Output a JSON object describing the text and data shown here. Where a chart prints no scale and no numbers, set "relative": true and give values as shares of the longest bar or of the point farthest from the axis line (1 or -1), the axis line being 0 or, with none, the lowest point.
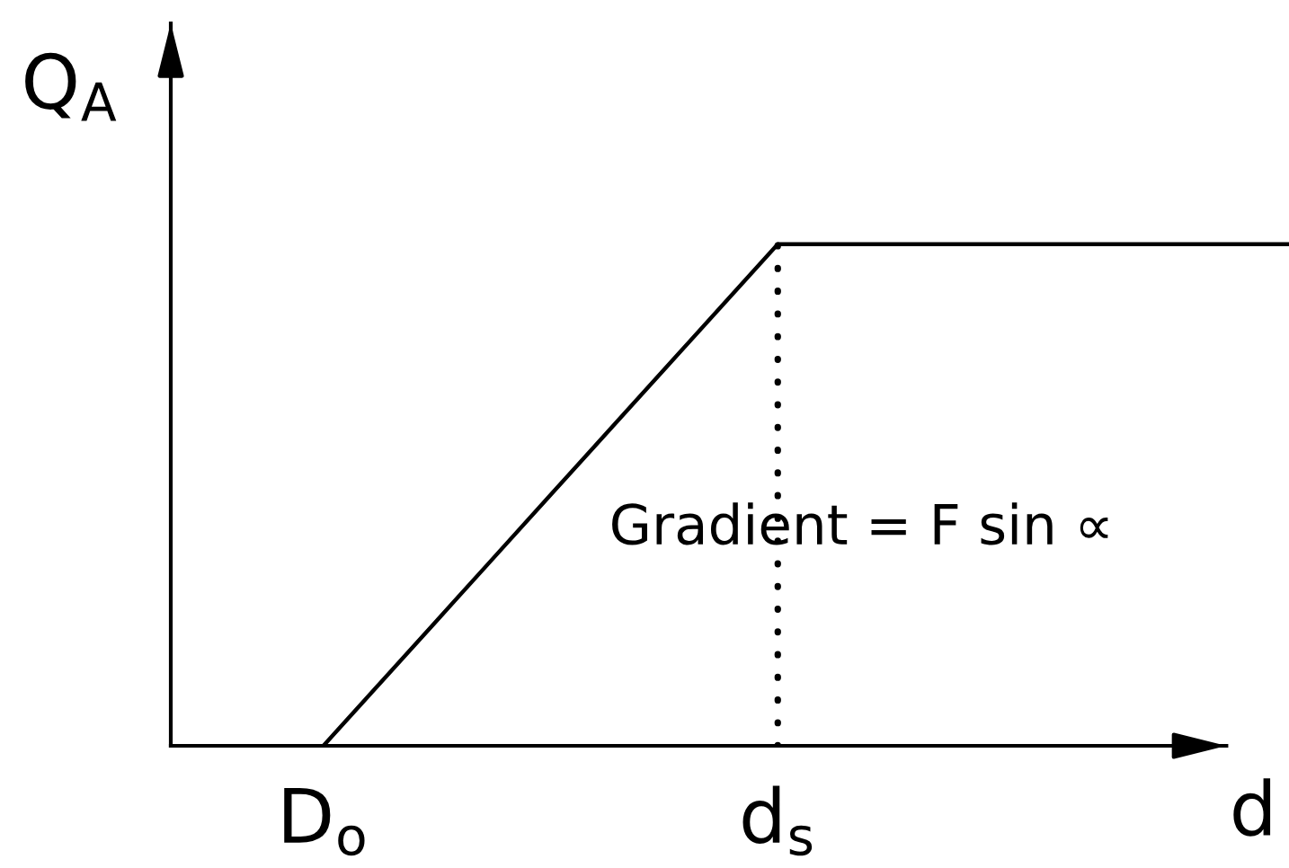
{
  "chart_data": {
    "type": "line",
    "relative": true,
    "xlabel": "d",
    "ylabel": "Q$_{A}$",
    "categories": [
      "D$_{o}$",
      null,
      null,
      null,
      null,
      null,
      null,
      null,
      "d$_{s}$",
      null,
      null,
      null,
      null,
      null,
      null,
      null,
      null,
      null
    ],
    "values": [
      0,
      0.125,
      0.25,
      0.375,
      0.5,
      0.625,
      0.75,
      0.875,
      1,
      1,
      1,
      1,
      1,
      1,
      1,
      1,
      1,
      1
    ],
    "color": "#000000",
    "ref_lines": [
      {
        "axis": "x",
        "value": "d$_{s}$",
        "line_style": "dotted",
        "color": "#000000"
      }
    ],
    "annotations": [
      "Gradient = F sin ∝"
    ]
  }
}
